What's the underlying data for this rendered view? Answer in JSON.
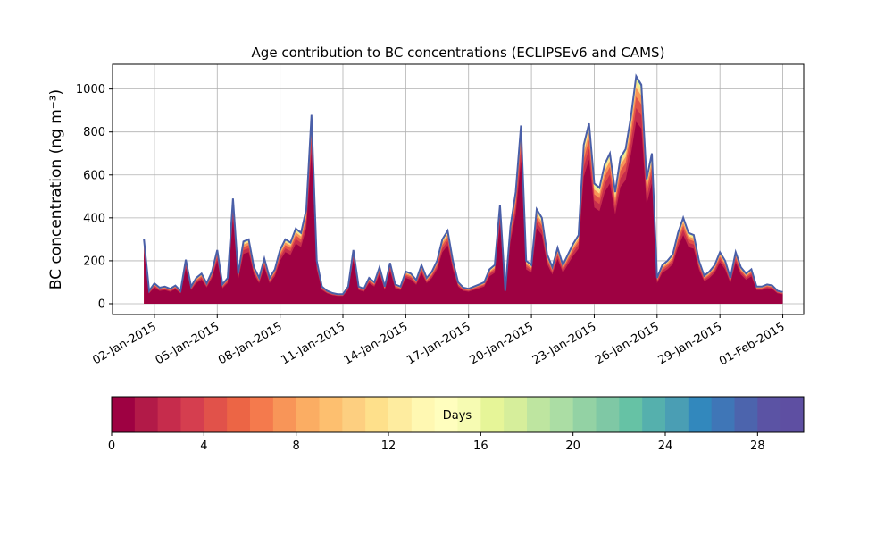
{
  "chart_data": [
    {
      "type": "area",
      "title": "Age contribution to BC concentrations (ECLIPSEv6 and CAMS)",
      "xlabel": "",
      "ylabel": "BC concentration (ng m⁻³)",
      "ylim": [
        -50,
        1115
      ],
      "xlim": [
        "2014-12-31",
        "2015-02-02"
      ],
      "grid": true,
      "y_ticks": [
        0,
        200,
        400,
        600,
        800,
        1000
      ],
      "x_ticks": [
        "02-Jan-2015",
        "05-Jan-2015",
        "08-Jan-2015",
        "11-Jan-2015",
        "14-Jan-2015",
        "17-Jan-2015",
        "20-Jan-2015",
        "23-Jan-2015",
        "26-Jan-2015",
        "29-Jan-2015",
        "01-Feb-2015"
      ],
      "x_tick_dates": [
        "2015-01-02",
        "2015-01-05",
        "2015-01-08",
        "2015-01-11",
        "2015-01-14",
        "2015-01-17",
        "2015-01-20",
        "2015-01-23",
        "2015-01-26",
        "2015-01-29",
        "2015-02-01"
      ],
      "series_note_colors": "stacked by age in days, 0 (dark red) to 30 (purple), Spectral colormap",
      "total": {
        "x": [
          "2015-01-01 12:00",
          "2015-01-01 18:00",
          "2015-01-02 00:00",
          "2015-01-02 06:00",
          "2015-01-02 12:00",
          "2015-01-02 18:00",
          "2015-01-03 00:00",
          "2015-01-03 06:00",
          "2015-01-03 12:00",
          "2015-01-03 18:00",
          "2015-01-04 00:00",
          "2015-01-04 06:00",
          "2015-01-04 12:00",
          "2015-01-04 18:00",
          "2015-01-05 00:00",
          "2015-01-05 06:00",
          "2015-01-05 12:00",
          "2015-01-05 18:00",
          "2015-01-06 00:00",
          "2015-01-06 06:00",
          "2015-01-06 12:00",
          "2015-01-06 18:00",
          "2015-01-07 00:00",
          "2015-01-07 06:00",
          "2015-01-07 12:00",
          "2015-01-07 18:00",
          "2015-01-08 00:00",
          "2015-01-08 06:00",
          "2015-01-08 12:00",
          "2015-01-08 18:00",
          "2015-01-09 00:00",
          "2015-01-09 06:00",
          "2015-01-09 12:00",
          "2015-01-09 18:00",
          "2015-01-10 00:00",
          "2015-01-10 06:00",
          "2015-01-10 12:00",
          "2015-01-10 18:00",
          "2015-01-11 00:00",
          "2015-01-11 06:00",
          "2015-01-11 12:00",
          "2015-01-11 18:00",
          "2015-01-12 00:00",
          "2015-01-12 06:00",
          "2015-01-12 12:00",
          "2015-01-12 18:00",
          "2015-01-13 00:00",
          "2015-01-13 06:00",
          "2015-01-13 12:00",
          "2015-01-13 18:00",
          "2015-01-14 00:00",
          "2015-01-14 06:00",
          "2015-01-14 12:00",
          "2015-01-14 18:00",
          "2015-01-15 00:00",
          "2015-01-15 06:00",
          "2015-01-15 12:00",
          "2015-01-15 18:00",
          "2015-01-16 00:00",
          "2015-01-16 06:00",
          "2015-01-16 12:00",
          "2015-01-16 18:00",
          "2015-01-17 00:00",
          "2015-01-17 06:00",
          "2015-01-17 12:00",
          "2015-01-17 18:00",
          "2015-01-18 00:00",
          "2015-01-18 06:00",
          "2015-01-18 12:00",
          "2015-01-18 18:00",
          "2015-01-19 00:00",
          "2015-01-19 06:00",
          "2015-01-19 12:00",
          "2015-01-19 18:00",
          "2015-01-20 00:00",
          "2015-01-20 06:00",
          "2015-01-20 12:00",
          "2015-01-20 18:00",
          "2015-01-21 00:00",
          "2015-01-21 06:00",
          "2015-01-21 12:00",
          "2015-01-21 18:00",
          "2015-01-22 00:00",
          "2015-01-22 06:00",
          "2015-01-22 12:00",
          "2015-01-22 18:00",
          "2015-01-23 00:00",
          "2015-01-23 06:00",
          "2015-01-23 12:00",
          "2015-01-23 18:00",
          "2015-01-24 00:00",
          "2015-01-24 06:00",
          "2015-01-24 12:00",
          "2015-01-24 18:00",
          "2015-01-25 00:00",
          "2015-01-25 06:00",
          "2015-01-25 12:00",
          "2015-01-25 18:00",
          "2015-01-26 00:00",
          "2015-01-26 06:00",
          "2015-01-26 12:00",
          "2015-01-26 18:00",
          "2015-01-27 00:00",
          "2015-01-27 06:00",
          "2015-01-27 12:00",
          "2015-01-27 18:00",
          "2015-01-28 00:00",
          "2015-01-28 06:00",
          "2015-01-28 12:00",
          "2015-01-28 18:00",
          "2015-01-29 00:00",
          "2015-01-29 06:00",
          "2015-01-29 12:00",
          "2015-01-29 18:00",
          "2015-01-30 00:00",
          "2015-01-30 06:00",
          "2015-01-30 12:00",
          "2015-01-30 18:00",
          "2015-01-31 00:00",
          "2015-01-31 06:00",
          "2015-01-31 12:00",
          "2015-01-31 18:00",
          "2015-02-01 00:00"
        ],
        "y": [
          300,
          60,
          95,
          75,
          80,
          70,
          85,
          60,
          205,
          80,
          120,
          140,
          95,
          150,
          250,
          90,
          120,
          490,
          140,
          290,
          300,
          170,
          120,
          210,
          120,
          160,
          250,
          300,
          285,
          350,
          330,
          440,
          880,
          200,
          80,
          60,
          50,
          45,
          45,
          80,
          250,
          80,
          70,
          120,
          100,
          170,
          80,
          190,
          90,
          80,
          150,
          140,
          110,
          180,
          120,
          150,
          200,
          300,
          340,
          200,
          100,
          75,
          70,
          80,
          90,
          100,
          160,
          180,
          460,
          60,
          360,
          520,
          830,
          200,
          180,
          440,
          400,
          230,
          170,
          260,
          180,
          230,
          280,
          320,
          740,
          840,
          560,
          540,
          650,
          700,
          520,
          680,
          720,
          870,
          1060,
          1020,
          580,
          700,
          120,
          180,
          200,
          230,
          330,
          400,
          330,
          320,
          200,
          130,
          150,
          180,
          240,
          200,
          120,
          240,
          170,
          140,
          160,
          80,
          80,
          90,
          85,
          60,
          55
        ]
      },
      "colorbar": {
        "label": "Days",
        "ticks": [
          0,
          4,
          8,
          12,
          16,
          20,
          24,
          28
        ],
        "range": [
          0,
          30
        ],
        "bins": 30,
        "colors": [
          "#9e0142",
          "#b21a48",
          "#c62c4c",
          "#d53e4f",
          "#e1524a",
          "#ec6545",
          "#f47a4d",
          "#f89558",
          "#fbad63",
          "#fdbf6f",
          "#fdcf80",
          "#fee08b",
          "#feec9f",
          "#fff8b2",
          "#fffebe",
          "#f6fbb2",
          "#e6f598",
          "#d6ee9b",
          "#bee5a0",
          "#abdda4",
          "#93d2a4",
          "#7fc8a5",
          "#66c2a5",
          "#55b0ad",
          "#4a9eb4",
          "#3288bd",
          "#3f76b7",
          "#4c64ad",
          "#5b53a4",
          "#5e4fa2"
        ]
      }
    }
  ]
}
